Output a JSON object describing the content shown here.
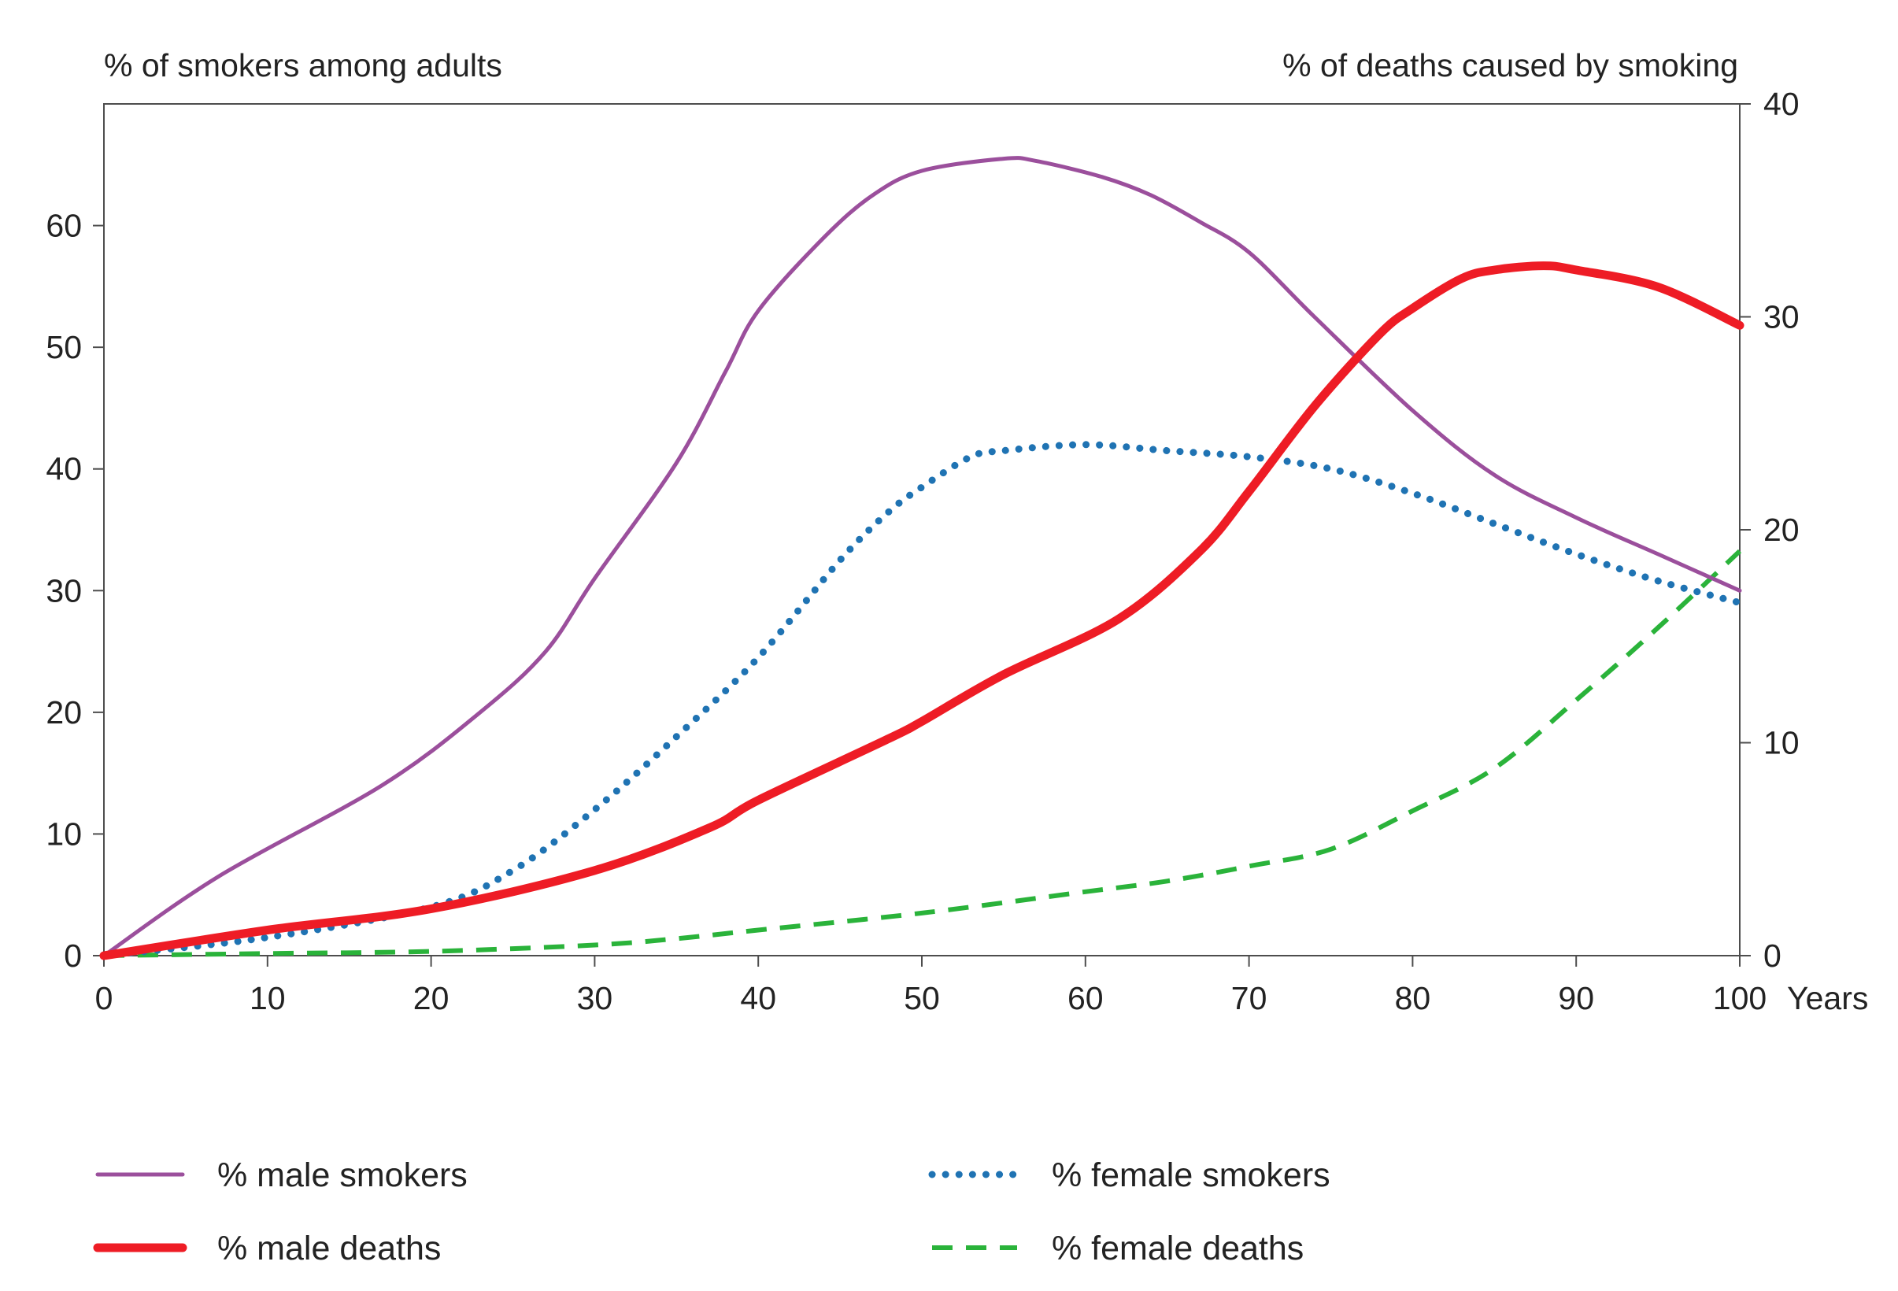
{
  "chart_data": {
    "type": "line",
    "title": "",
    "left_axis_label": "% of smokers among adults",
    "right_axis_label": "% of deaths caused by smoking",
    "x_unit_label": "Years",
    "x_range": [
      0,
      100
    ],
    "x_ticks": [
      0,
      10,
      20,
      30,
      40,
      50,
      60,
      70,
      80,
      90,
      100
    ],
    "left_range": [
      0,
      70
    ],
    "left_ticks": [
      0,
      10,
      20,
      30,
      40,
      50,
      60
    ],
    "right_range": [
      0,
      40
    ],
    "right_ticks": [
      0,
      10,
      20,
      30,
      40
    ],
    "grid": false,
    "legend_position": "bottom",
    "series": [
      {
        "name": "% male smokers",
        "axis": "left",
        "style": "solid-thin",
        "color": "#9b4f9c",
        "x": [
          0,
          7,
          17,
          23,
          27,
          30,
          35,
          38,
          40,
          44,
          47,
          50,
          55,
          57,
          61,
          64,
          67,
          70,
          74,
          80,
          85,
          90,
          95,
          100
        ],
        "y": [
          0,
          6.5,
          14,
          20,
          25,
          31,
          40.5,
          48,
          53,
          59,
          62.5,
          64.5,
          65.5,
          65.3,
          64,
          62.5,
          60.3,
          57.8,
          52.5,
          44.8,
          39.5,
          36,
          33,
          30
        ]
      },
      {
        "name": "% female smokers",
        "axis": "left",
        "style": "dotted",
        "color": "#1f73b3",
        "x": [
          0,
          10,
          20,
          25,
          30,
          35,
          40,
          45,
          48,
          50,
          53,
          55,
          60,
          65,
          70,
          75,
          80,
          85,
          90,
          95,
          100
        ],
        "y": [
          0,
          1.5,
          4,
          7,
          12,
          18,
          24.5,
          32.5,
          36.5,
          38.5,
          41,
          41.5,
          42,
          41.5,
          41,
          40,
          38,
          35.5,
          33,
          30.8,
          29
        ]
      },
      {
        "name": "% male deaths",
        "axis": "right",
        "style": "solid-thick",
        "color": "#ee1c25",
        "x": [
          0,
          10,
          20,
          30,
          37,
          40,
          48,
          50,
          55,
          62,
          67,
          70,
          74,
          78,
          80,
          83,
          85,
          88,
          90,
          95,
          100
        ],
        "y": [
          0,
          1.2,
          2.2,
          4,
          6,
          7.3,
          10.2,
          11,
          13.2,
          15.8,
          19,
          21.8,
          25.8,
          29.2,
          30.4,
          31.8,
          32.2,
          32.4,
          32.2,
          31.4,
          29.6
        ]
      },
      {
        "name": "% female deaths",
        "axis": "right",
        "style": "dashed",
        "color": "#2ab33a",
        "x": [
          0,
          10,
          20,
          30,
          35,
          40,
          50,
          60,
          65,
          70,
          75,
          80,
          85,
          90,
          95,
          100
        ],
        "y": [
          0,
          0.1,
          0.2,
          0.5,
          0.8,
          1.2,
          2,
          3,
          3.5,
          4.2,
          5,
          6.8,
          8.8,
          12,
          15.4,
          19
        ]
      }
    ]
  }
}
